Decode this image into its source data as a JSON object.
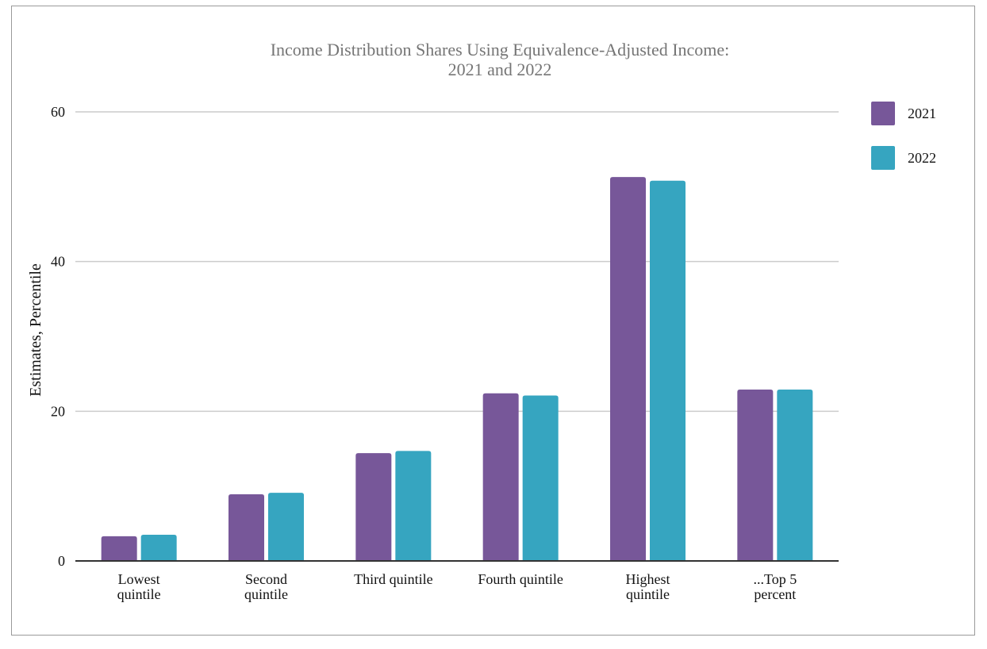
{
  "chart_data": {
    "type": "bar",
    "title": [
      "Income Distribution Shares Using Equivalence-Adjusted Income:",
      "2021 and 2022"
    ],
    "xlabel": "",
    "ylabel": "Estimates, Percentile",
    "ylim": [
      0,
      60
    ],
    "yticks": [
      0,
      20,
      40,
      60
    ],
    "ytick_labels": [
      "0",
      "20",
      "40",
      "60"
    ],
    "grid": true,
    "legend_position": "right",
    "categories": [
      [
        "Lowest",
        "quintile"
      ],
      [
        "Second",
        "quintile"
      ],
      [
        "Third quintile"
      ],
      [
        "Fourth quintile"
      ],
      [
        "Highest",
        "quintile"
      ],
      [
        "...Top 5",
        "percent"
      ]
    ],
    "series": [
      {
        "name": "2021",
        "color": "#775799",
        "values": [
          3.3,
          8.9,
          14.4,
          22.4,
          51.3,
          22.9
        ]
      },
      {
        "name": "2022",
        "color": "#36a5c0",
        "values": [
          3.5,
          9.1,
          14.7,
          22.1,
          50.8,
          22.9
        ]
      }
    ],
    "gridline_color": "#cccccc",
    "axis_color": "#333333"
  }
}
